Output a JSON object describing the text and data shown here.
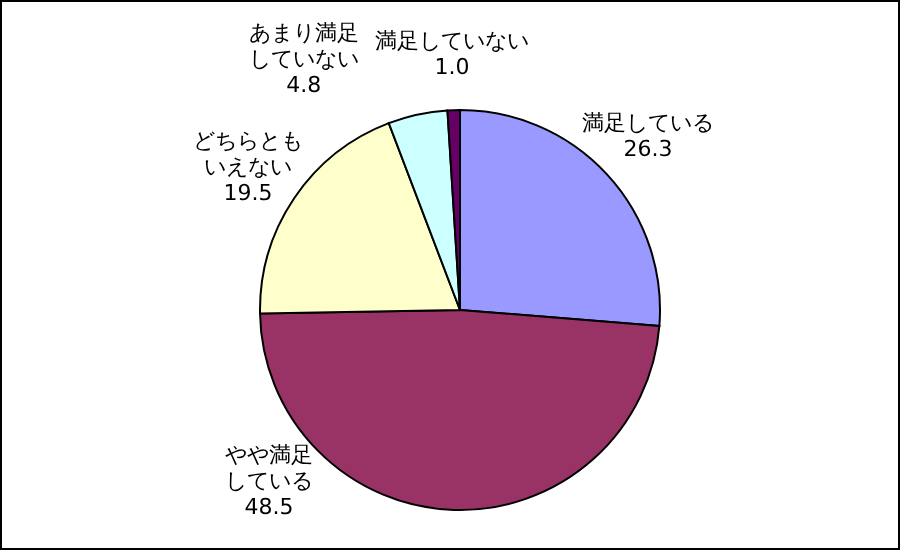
{
  "chart_data": {
    "type": "pie",
    "categories": [
      "満足している",
      "やや満足している",
      "どちらともいえない",
      "あまり満足していない",
      "満足していない"
    ],
    "values": [
      26.3,
      48.5,
      19.5,
      4.8,
      1.0
    ],
    "value_labels": [
      "26.3",
      "48.5",
      "19.5",
      "4.8",
      "1.0"
    ],
    "colors": [
      "#9999ff",
      "#993366",
      "#ffffcc",
      "#ccffff",
      "#660066"
    ]
  }
}
